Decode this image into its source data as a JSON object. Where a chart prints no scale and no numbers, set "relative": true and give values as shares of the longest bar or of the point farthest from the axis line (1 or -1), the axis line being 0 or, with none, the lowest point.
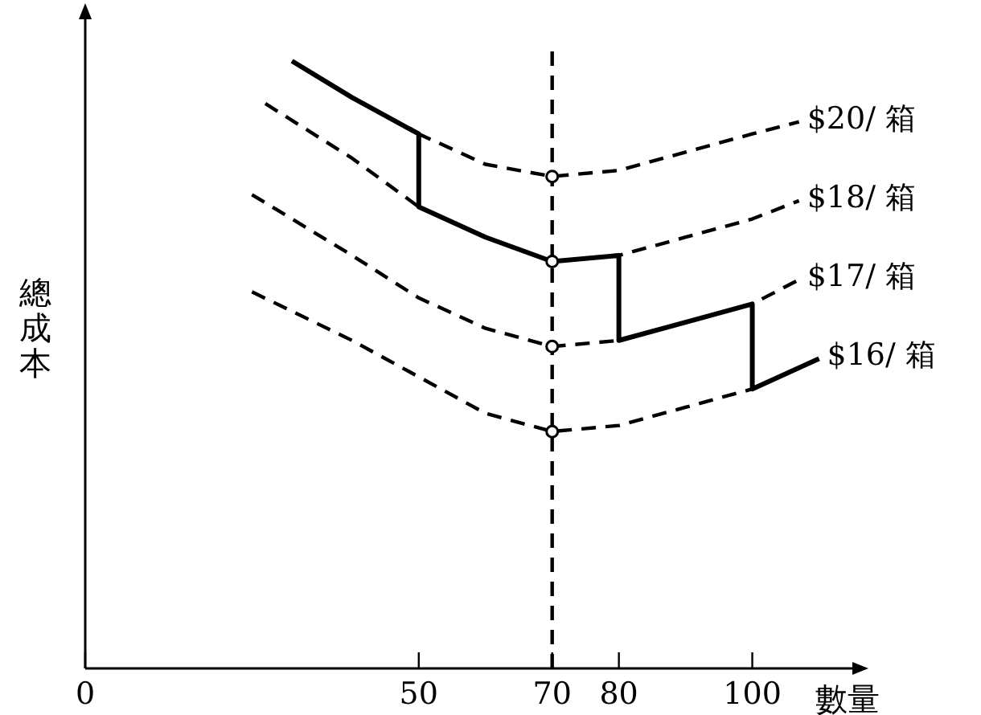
{
  "chart_data": {
    "type": "line",
    "relative": true,
    "xlabel": "數量",
    "ylabel": "總成本",
    "xlim": [
      0,
      115
    ],
    "xticks": [
      0,
      50,
      70,
      80,
      100
    ],
    "line_style": "dashed",
    "marker": "none",
    "grid": false,
    "legend": false,
    "ref_lines": [
      {
        "axis": "x",
        "value": 70,
        "line_style": "dashed",
        "color": "#000000"
      }
    ],
    "series": [
      {
        "name": "$20/ 箱",
        "color": "#000000",
        "x": [
          31,
          40,
          50,
          60,
          70,
          80,
          90,
          100,
          107
        ],
        "values": [
          1.0,
          0.94,
          0.88,
          0.83,
          0.81,
          0.82,
          0.85,
          0.88,
          0.9
        ]
      },
      {
        "name": "$18/ 箱",
        "color": "#000000",
        "x": [
          27,
          40,
          50,
          60,
          70,
          80,
          90,
          100,
          107
        ],
        "values": [
          0.93,
          0.84,
          0.76,
          0.71,
          0.67,
          0.68,
          0.71,
          0.74,
          0.77
        ]
      },
      {
        "name": "$17/ 箱",
        "color": "#000000",
        "x": [
          25,
          40,
          50,
          60,
          70,
          80,
          90,
          100,
          107
        ],
        "values": [
          0.78,
          0.68,
          0.61,
          0.56,
          0.53,
          0.54,
          0.57,
          0.6,
          0.64
        ]
      },
      {
        "name": "$16/ 箱",
        "color": "#000000",
        "x": [
          25,
          40,
          50,
          60,
          70,
          80,
          90,
          100,
          110
        ],
        "values": [
          0.62,
          0.54,
          0.48,
          0.42,
          0.39,
          0.4,
          0.43,
          0.46,
          0.51
        ]
      },
      {
        "color": "#000000",
        "line_style": "solid",
        "x": [
          31,
          40,
          50,
          50,
          60,
          70,
          80,
          80,
          90,
          100,
          100,
          110
        ],
        "values": [
          1.0,
          0.94,
          0.88,
          0.76,
          0.71,
          0.67,
          0.68,
          0.54,
          0.57,
          0.6,
          0.46,
          0.51
        ]
      },
      {
        "type": "scatter",
        "marker": "circle",
        "color": "#000000",
        "x": [
          70,
          70,
          70,
          70
        ],
        "values": [
          0.81,
          0.67,
          0.53,
          0.39
        ]
      }
    ]
  }
}
